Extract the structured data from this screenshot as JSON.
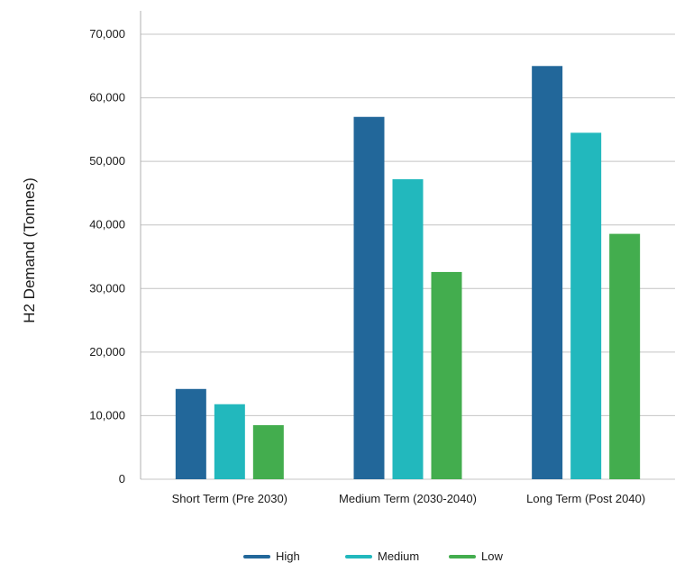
{
  "chart_data": {
    "type": "bar",
    "title": "",
    "xlabel": "",
    "ylabel": "H2 Demand (Tonnes)",
    "ylim": [
      0,
      70000
    ],
    "yticks": [
      0,
      10000,
      20000,
      30000,
      40000,
      50000,
      60000,
      70000
    ],
    "ytick_labels": [
      "0",
      "10,000",
      "20,000",
      "30,000",
      "40,000",
      "50,000",
      "60,000",
      "70,000"
    ],
    "grid": "horizontal",
    "legend_position": "bottom",
    "categories": [
      "Short Term (Pre 2030)",
      "Medium Term (2030-2040)",
      "Long Term (Post 2040)"
    ],
    "series": [
      {
        "name": "High",
        "color": "#22679a",
        "values": [
          14200,
          57000,
          65000
        ]
      },
      {
        "name": "Medium",
        "color": "#22b8bd",
        "values": [
          11800,
          47200,
          54500
        ]
      },
      {
        "name": "Low",
        "color": "#43ad4e",
        "values": [
          8500,
          32600,
          38600
        ]
      }
    ]
  }
}
